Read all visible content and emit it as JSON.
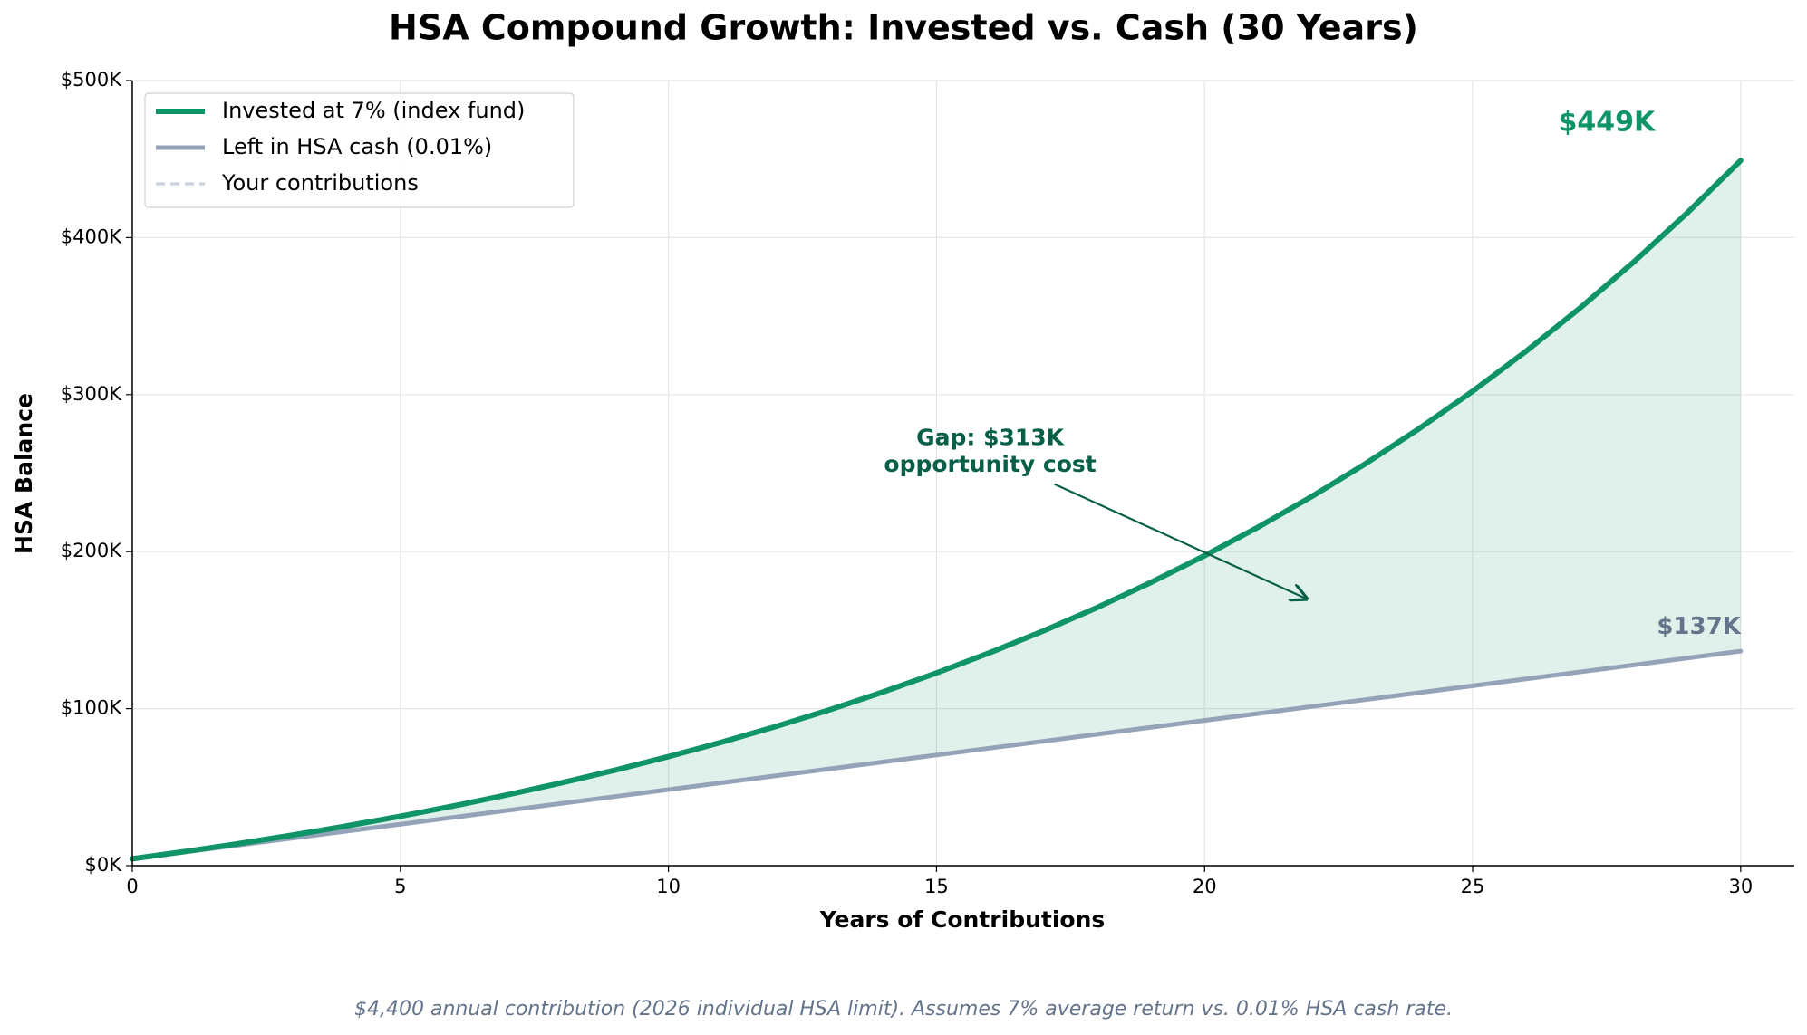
{
  "chart_data": {
    "type": "line",
    "title": "HSA Compound Growth: Invested vs. Cash (30 Years)",
    "xlabel": "Years of Contributions",
    "ylabel": "HSA Balance",
    "caption": "$4,400 annual contribution (2026 individual HSA limit). Assumes 7% average return vs. 0.01% HSA cash rate.",
    "x": [
      0,
      1,
      2,
      3,
      4,
      5,
      6,
      7,
      8,
      9,
      10,
      11,
      12,
      13,
      14,
      15,
      16,
      17,
      18,
      19,
      20,
      21,
      22,
      23,
      24,
      25,
      26,
      27,
      28,
      29,
      30
    ],
    "series": [
      {
        "name": "Invested at 7% (index fund)",
        "color": "#0f9468",
        "values": [
          4400,
          9108,
          14146,
          19536,
          25303,
          31474,
          38078,
          45143,
          52703,
          60792,
          69448,
          78709,
          88619,
          99222,
          110568,
          122707,
          135697,
          149596,
          164467,
          180380,
          197407,
          215625,
          235119,
          255977,
          278296,
          302177,
          327729,
          355070,
          384325,
          415627,
          449121
        ]
      },
      {
        "name": "Left in HSA cash (0.01%)",
        "color": "#94a3b8",
        "values": [
          4400,
          8800,
          13201,
          17602,
          22004,
          26406,
          30809,
          35212,
          39616,
          44020,
          48425,
          52830,
          57236,
          61642,
          66048,
          70455,
          74863,
          79271,
          83679,
          88088,
          92497,
          96906,
          101316,
          105727,
          110138,
          114549,
          118961,
          123373,
          127786,
          132199,
          136613
        ]
      },
      {
        "name": "Your contributions",
        "color": "#cbd5e1",
        "dashed": true,
        "values": [
          4400,
          8800,
          13200,
          17600,
          22000,
          26400,
          30800,
          35200,
          39600,
          44000,
          48400,
          52800,
          57200,
          61600,
          66000,
          70400,
          74800,
          79200,
          83600,
          88000,
          92400,
          96800,
          101200,
          105600,
          110000,
          114400,
          118800,
          123200,
          127600,
          132000,
          136400
        ]
      }
    ],
    "fill_between": true,
    "annotations": [
      "$449K",
      "$137K",
      "Gap: $313K",
      "opportunity cost"
    ],
    "xlim": [
      0,
      31
    ],
    "xticks": [
      0,
      5,
      10,
      15,
      20,
      25,
      30
    ],
    "ylim": [
      0,
      500000
    ],
    "yticks": [
      {
        "value": 0,
        "label": "$0K"
      },
      {
        "value": 100000,
        "label": "$100K"
      },
      {
        "value": 200000,
        "label": "$200K"
      },
      {
        "value": 300000,
        "label": "$300K"
      },
      {
        "value": 400000,
        "label": "$400K"
      },
      {
        "value": 500000,
        "label": "$500K"
      }
    ],
    "grid": true,
    "legend": "upper left"
  }
}
